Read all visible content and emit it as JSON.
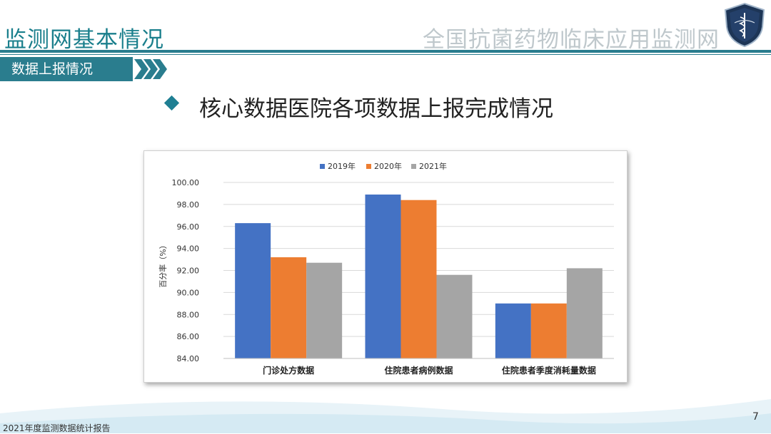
{
  "header": {
    "title": "监测网基本情况",
    "org_name": "全国抗菌药物临床应用监测网",
    "section_tab": "数据上报情况"
  },
  "heading": "核心数据医院各项数据上报完成情况",
  "footer": {
    "report": "2021年度监测数据统计报告",
    "page": "7"
  },
  "colors": {
    "teal": "#2a7d8e",
    "series_2019": "#4472c4",
    "series_2020": "#ed7d31",
    "series_2021": "#a5a5a5"
  },
  "chart_data": {
    "type": "bar",
    "categories": [
      "门诊处方数据",
      "住院患者病例数据",
      "住院患者季度消耗量数据"
    ],
    "series": [
      {
        "name": "2019年",
        "values": [
          96.3,
          98.9,
          89.0
        ]
      },
      {
        "name": "2020年",
        "values": [
          93.2,
          98.4,
          89.0
        ]
      },
      {
        "name": "2021年",
        "values": [
          92.7,
          91.6,
          92.2
        ]
      }
    ],
    "ylabel": "百分率（%）",
    "ylim": [
      84,
      100
    ],
    "yticks": [
      "84.00",
      "86.00",
      "88.00",
      "90.00",
      "92.00",
      "94.00",
      "96.00",
      "98.00",
      "100.00"
    ],
    "legend_position": "top",
    "grid": true
  }
}
